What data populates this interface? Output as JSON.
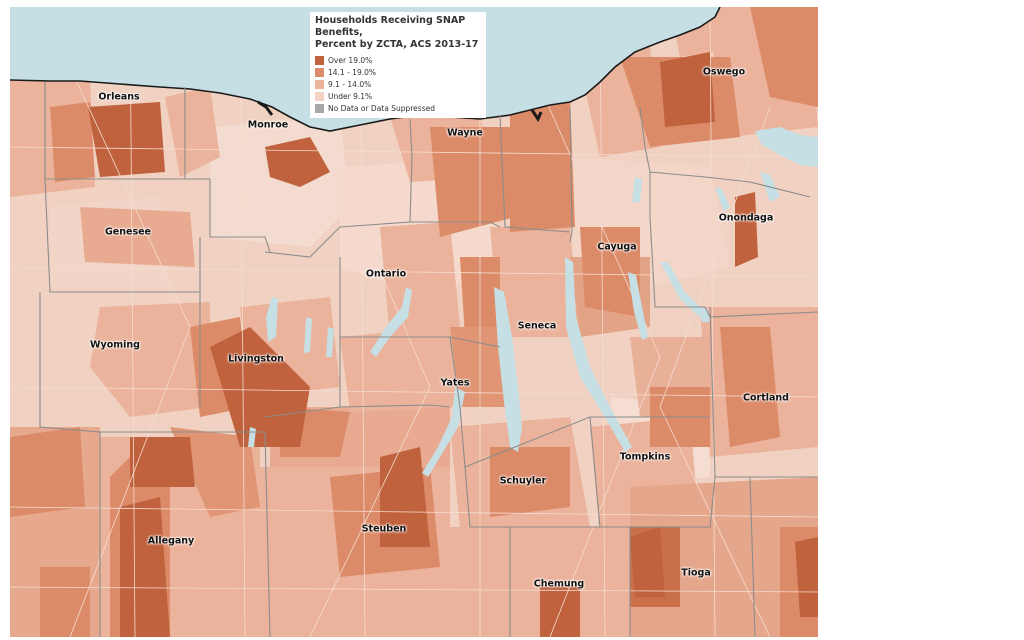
{
  "legend": {
    "title_line1": "Households Receiving SNAP Benefits,",
    "title_line2": "Percent by ZCTA, ACS 2013-17",
    "items": [
      {
        "label": "Over 19.0%",
        "color": "#c0623d"
      },
      {
        "label": "14.1 - 19.0%",
        "color": "#dc8b68"
      },
      {
        "label": "9.1 - 14.0%",
        "color": "#ebb39b"
      },
      {
        "label": "Under 9.1%",
        "color": "#f4d3c4"
      },
      {
        "label": "No Data or Data Suppressed",
        "color": "#a8a8a8"
      }
    ]
  },
  "counties": [
    "Orleans",
    "Monroe",
    "Wayne",
    "Oswego",
    "Genesee",
    "Onondaga",
    "Cayuga",
    "Ontario",
    "Seneca",
    "Wyoming",
    "Livingston",
    "Yates",
    "Cortland",
    "Tompkins",
    "Schuyler",
    "Allegany",
    "Steuben",
    "Chemung",
    "Tioga"
  ],
  "colors": {
    "water": "#c6dfe4",
    "county_border": "#8c8c8c",
    "shoreline": "#1a1a1a"
  }
}
